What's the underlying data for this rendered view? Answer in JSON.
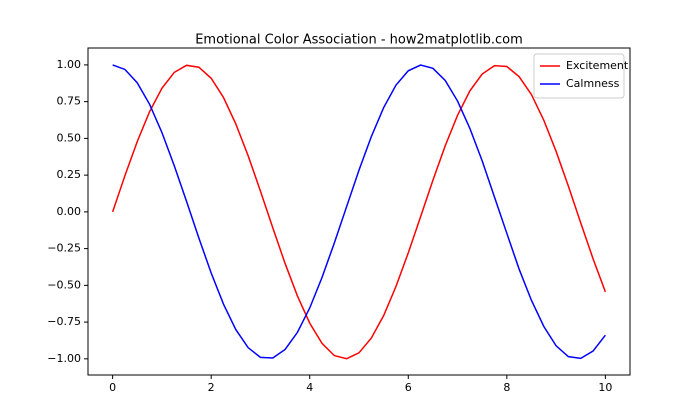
{
  "chart_data": {
    "type": "line",
    "title": "Emotional Color Association - how2matplotlib.com",
    "x": [
      0,
      0.25,
      0.5,
      0.75,
      1,
      1.25,
      1.5,
      1.75,
      2,
      2.25,
      2.5,
      2.75,
      3,
      3.25,
      3.5,
      3.75,
      4,
      4.25,
      4.5,
      4.75,
      5,
      5.25,
      5.5,
      5.75,
      6,
      6.25,
      6.5,
      6.75,
      7,
      7.25,
      7.5,
      7.75,
      8,
      8.25,
      8.5,
      8.75,
      9,
      9.25,
      9.5,
      9.75,
      10
    ],
    "series": [
      {
        "name": "Excitement",
        "color": "#ff0000",
        "values": [
          0,
          0.247,
          0.479,
          0.682,
          0.841,
          0.949,
          0.997,
          0.984,
          0.909,
          0.778,
          0.598,
          0.382,
          0.141,
          -0.108,
          -0.351,
          -0.572,
          -0.757,
          -0.895,
          -0.978,
          -0.999,
          -0.959,
          -0.859,
          -0.706,
          -0.508,
          -0.279,
          -0.033,
          0.215,
          0.45,
          0.657,
          0.823,
          0.938,
          0.995,
          0.989,
          0.92,
          0.798,
          0.624,
          0.412,
          0.174,
          -0.075,
          -0.319,
          -0.544
        ]
      },
      {
        "name": "Calmness",
        "color": "#0000ff",
        "values": [
          1,
          0.969,
          0.878,
          0.732,
          0.54,
          0.315,
          0.071,
          -0.178,
          -0.416,
          -0.628,
          -0.801,
          -0.924,
          -0.99,
          -0.994,
          -0.936,
          -0.82,
          -0.654,
          -0.446,
          -0.211,
          0.037,
          0.284,
          0.512,
          0.709,
          0.862,
          0.96,
          0.999,
          0.977,
          0.894,
          0.754,
          0.568,
          0.347,
          0.1,
          -0.146,
          -0.39,
          -0.602,
          -0.779,
          -0.911,
          -0.985,
          -0.997,
          -0.947,
          -0.839
        ]
      }
    ],
    "xlim": [
      -0.5,
      10.5
    ],
    "ylim": [
      -1.11,
      1.115
    ],
    "xticks": [
      0,
      2,
      4,
      6,
      8,
      10
    ],
    "yticks": [
      {
        "value": -1,
        "label": "−1.00"
      },
      {
        "value": -0.75,
        "label": "−0.75"
      },
      {
        "value": -0.5,
        "label": "−0.50"
      },
      {
        "value": -0.25,
        "label": "−0.25"
      },
      {
        "value": 0,
        "label": "0.00"
      },
      {
        "value": 0.25,
        "label": "0.25"
      },
      {
        "value": 0.5,
        "label": "0.50"
      },
      {
        "value": 0.75,
        "label": "0.75"
      },
      {
        "value": 1,
        "label": "1.00"
      }
    ],
    "legend": "upper right",
    "grid": false
  }
}
